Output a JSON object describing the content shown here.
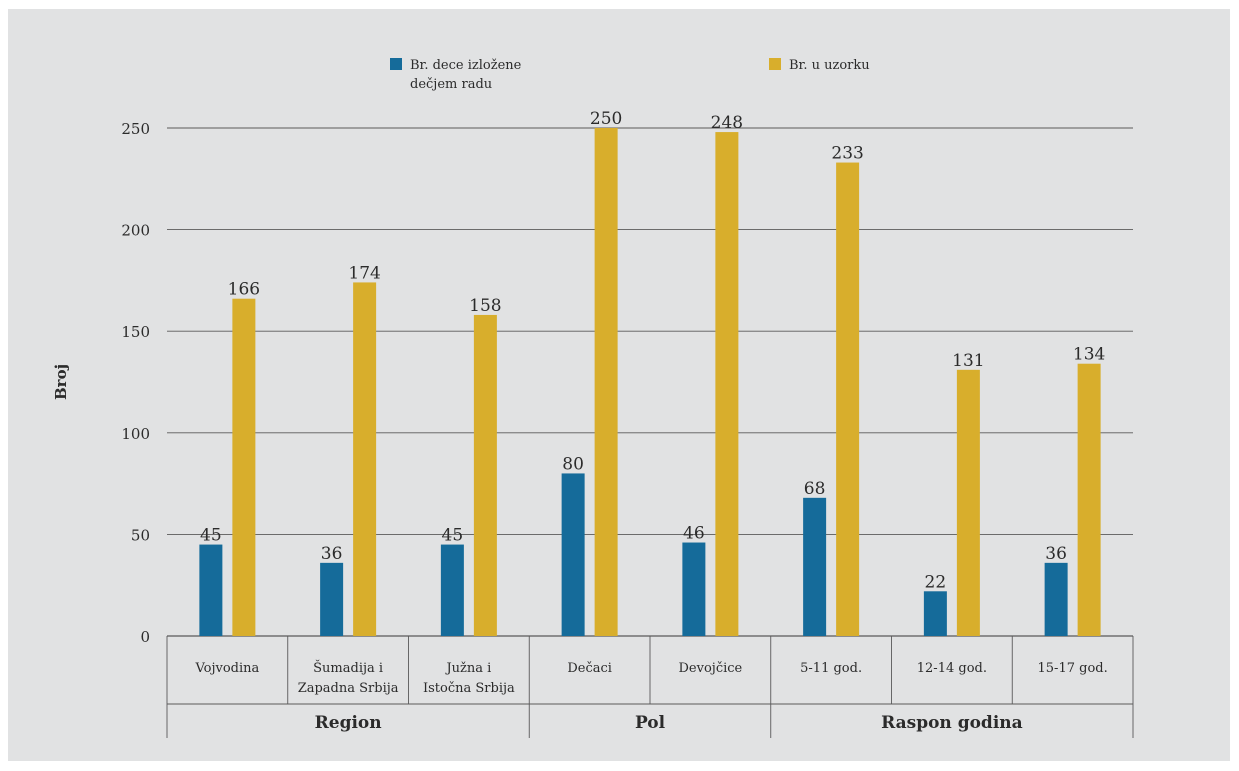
{
  "colors": {
    "background": "#e1e2e3",
    "page": "#ffffff",
    "series_exposed": "#156b9a",
    "series_sample": "#d8ae2c",
    "gridline": "#5a5a5a",
    "text": "#2b2b2b"
  },
  "chart_data": {
    "type": "bar",
    "title": "",
    "xlabel": "",
    "ylabel": "Broj",
    "ylim": [
      0,
      250
    ],
    "yticks": [
      0,
      50,
      100,
      150,
      200,
      250
    ],
    "grid": true,
    "legend_position": "top",
    "categories": [
      [
        "Vojvodina"
      ],
      [
        "Šumadija i",
        "Zapadna Srbija"
      ],
      [
        "Južna i",
        "Istočna Srbija"
      ],
      [
        "Dečaci"
      ],
      [
        "Devojčice"
      ],
      [
        "5-11 god."
      ],
      [
        "12-14 god."
      ],
      [
        "15-17 god."
      ]
    ],
    "groups": [
      {
        "label": "Region",
        "categories": 3
      },
      {
        "label": "Pol",
        "categories": 2
      },
      {
        "label": "Raspon godina",
        "categories": 3
      }
    ],
    "series": [
      {
        "name": "Br. dece izložene dečjem radu",
        "name_lines": [
          "Br. dece izložene",
          "dečjem radu"
        ],
        "color_key": "series_exposed",
        "values": [
          45,
          36,
          45,
          80,
          46,
          68,
          22,
          36
        ]
      },
      {
        "name": "Br. u uzorku",
        "name_lines": [
          "Br. u uzorku"
        ],
        "color_key": "series_sample",
        "values": [
          166,
          174,
          158,
          250,
          248,
          233,
          131,
          134
        ]
      }
    ]
  }
}
